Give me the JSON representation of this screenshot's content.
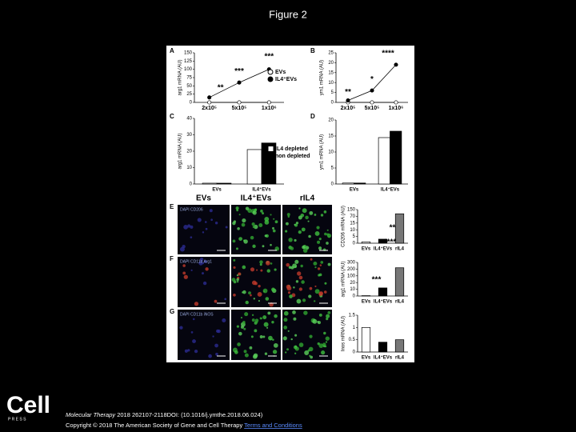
{
  "header": {
    "title": "Figure 2"
  },
  "panels": [
    {
      "type": "line",
      "label": "A",
      "y_label": "arg1 mRNA (AU)",
      "yticks": [
        0,
        25,
        50,
        75,
        100,
        125,
        150
      ],
      "categories": [
        "2x10⁵",
        "5x10⁵",
        "1x10⁶"
      ],
      "series": [
        {
          "name": "EVs",
          "color": "#ffffff",
          "values": [
            0,
            0,
            0
          ]
        },
        {
          "name": "IL4⁺EVs",
          "color": "#000000",
          "values": [
            15,
            60,
            100
          ]
        }
      ],
      "annotations": [
        "**",
        "***",
        "***"
      ]
    },
    {
      "type": "line",
      "label": "B",
      "y_label": "ym1 mRNA (AU)",
      "yticks": [
        0,
        5,
        10,
        15,
        20,
        25
      ],
      "categories": [
        "2x10⁵",
        "5x10⁵",
        "1x10⁶"
      ],
      "series": [
        {
          "color": "#ffffff",
          "values": [
            0,
            0,
            0
          ]
        },
        {
          "color": "#000000",
          "values": [
            1,
            6,
            19
          ]
        }
      ],
      "annotations": [
        "**",
        "*",
        "****"
      ]
    },
    {
      "type": "bar",
      "label": "C",
      "y_label": "arg1 mRNA (AU)",
      "yticks": [
        0,
        10,
        20,
        30,
        40
      ],
      "categories": [
        "EVs",
        "IL4⁺EVs"
      ],
      "series": [
        {
          "name": "IL4 depleted",
          "color": "#ffffff",
          "values": [
            0.5,
            21
          ]
        },
        {
          "name": "non depleted",
          "color": "#000000",
          "values": [
            0.5,
            25
          ]
        }
      ]
    },
    {
      "type": "bar",
      "label": "D",
      "y_label": "ym1 mRNA (AU)",
      "yticks": [
        0,
        5,
        10,
        15,
        20
      ],
      "categories": [
        "EVs",
        "IL4⁺EVs"
      ],
      "series": [
        {
          "color": "#ffffff",
          "values": [
            0.3,
            14.5
          ]
        },
        {
          "color": "#000000",
          "values": [
            0.3,
            16.5
          ]
        }
      ]
    },
    {
      "type": "bar",
      "y_label": "CD206 mRNA (AU)",
      "yticks": [
        0,
        5,
        10,
        15,
        70,
        150
      ],
      "categories": [
        "EVs",
        "IL4⁺EVs",
        "rIL4"
      ],
      "series": [
        {
          "colors": [
            "#ffffff",
            "#000000",
            "#777777"
          ],
          "values": [
            1,
            3,
            100
          ]
        }
      ],
      "annotations": [
        "**"
      ]
    },
    {
      "type": "bar",
      "y_label": "arg1 mRNA (AU)",
      "yticks": [
        0,
        10,
        20,
        100,
        200,
        300
      ],
      "categories": [
        "EVs",
        "IL4⁺EVs",
        "rIL4"
      ],
      "series": [
        {
          "colors": [
            "#ffffff",
            "#000000",
            "#777777"
          ],
          "values": [
            0.5,
            12,
            220
          ]
        }
      ],
      "annotations": [
        "***",
        "****"
      ]
    },
    {
      "type": "bar",
      "y_label": "Inos mRNA (AU)",
      "yticks": [
        0,
        0.5,
        1,
        1.5
      ],
      "categories": [
        "EVs",
        "IL4⁺EVs",
        "rIL4"
      ],
      "series": [
        {
          "colors": [
            "#ffffff",
            "#000000",
            "#777777"
          ],
          "values": [
            1.0,
            0.4,
            0.5
          ]
        }
      ]
    }
  ],
  "micrographs": {
    "columns": [
      "EVs",
      "IL4⁺EVs",
      "rIL4"
    ],
    "rows": [
      {
        "label": "E",
        "stain": "DAPI CD206"
      },
      {
        "label": "F",
        "stain": "DAPI CD11b Arg1"
      },
      {
        "label": "G",
        "stain": "DAPI CD11b iNOS"
      }
    ]
  },
  "footer": {
    "logo": "Cell",
    "logo_sub": "P R E S S",
    "journal": "Molecular Therapy",
    "citation": "2018 262107-2118DOI: (10.1016/j.ymthe.2018.06.024)",
    "copyright": "Copyright © 2018 The American Society of Gene and Cell Therapy",
    "link": "Terms and Conditions"
  }
}
